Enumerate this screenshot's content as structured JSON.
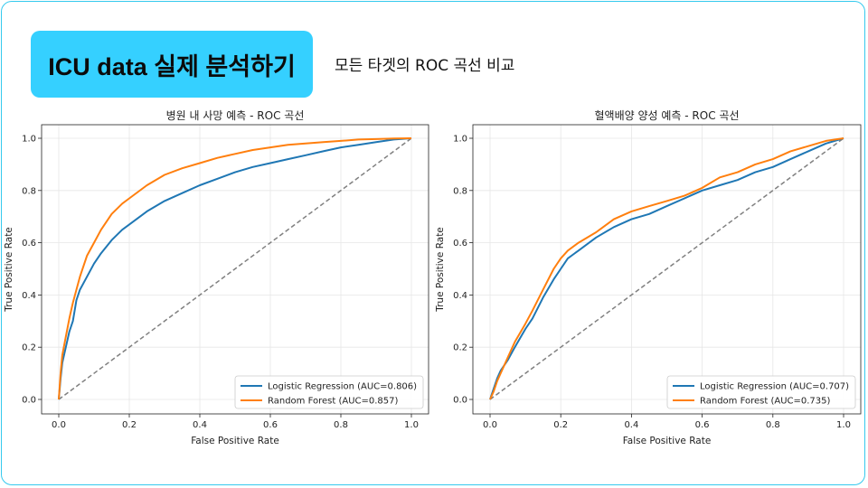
{
  "header": {
    "title": "ICU data 실제 분석하기",
    "subtitle": "모든 타겟의 ROC 곡선 비교"
  },
  "colors": {
    "accent": "#35d0ff",
    "logistic": "#1f77b4",
    "random_forest": "#ff7f0e",
    "diagonal": "#808080"
  },
  "chart_data": [
    {
      "type": "line",
      "title": "병원 내 사망 예측 - ROC 곡선",
      "xlabel": "False Positive Rate",
      "ylabel": "True Positive Rate",
      "xlim": [
        0,
        1
      ],
      "ylim": [
        0,
        1
      ],
      "xticks": [
        "0.0",
        "0.2",
        "0.4",
        "0.6",
        "0.8",
        "1.0"
      ],
      "yticks": [
        "0.0",
        "0.2",
        "0.4",
        "0.6",
        "0.8",
        "1.0"
      ],
      "grid": true,
      "legend_position": "lower right",
      "series": [
        {
          "name": "Logistic Regression (AUC=0.806)",
          "x": [
            0,
            0.005,
            0.01,
            0.02,
            0.03,
            0.04,
            0.05,
            0.06,
            0.08,
            0.1,
            0.12,
            0.15,
            0.18,
            0.2,
            0.25,
            0.3,
            0.35,
            0.4,
            0.45,
            0.5,
            0.55,
            0.6,
            0.65,
            0.7,
            0.75,
            0.8,
            0.85,
            0.9,
            0.95,
            1.0
          ],
          "y": [
            0,
            0.08,
            0.14,
            0.2,
            0.26,
            0.3,
            0.38,
            0.42,
            0.47,
            0.52,
            0.56,
            0.61,
            0.65,
            0.67,
            0.72,
            0.76,
            0.79,
            0.82,
            0.845,
            0.87,
            0.89,
            0.905,
            0.92,
            0.935,
            0.95,
            0.965,
            0.975,
            0.985,
            0.995,
            1.0
          ]
        },
        {
          "name": "Random Forest (AUC=0.857)",
          "x": [
            0,
            0.005,
            0.01,
            0.02,
            0.03,
            0.04,
            0.05,
            0.06,
            0.08,
            0.1,
            0.12,
            0.15,
            0.18,
            0.2,
            0.25,
            0.3,
            0.35,
            0.4,
            0.45,
            0.5,
            0.55,
            0.6,
            0.65,
            0.7,
            0.75,
            0.8,
            0.85,
            0.9,
            0.95,
            1.0
          ],
          "y": [
            0,
            0.1,
            0.17,
            0.24,
            0.31,
            0.37,
            0.42,
            0.47,
            0.55,
            0.6,
            0.65,
            0.71,
            0.75,
            0.77,
            0.82,
            0.86,
            0.885,
            0.905,
            0.925,
            0.94,
            0.955,
            0.965,
            0.975,
            0.98,
            0.985,
            0.99,
            0.995,
            0.997,
            0.999,
            1.0
          ]
        }
      ]
    },
    {
      "type": "line",
      "title": "혈액배양 양성 예측 - ROC 곡선",
      "xlabel": "False Positive Rate",
      "ylabel": "True Positive Rate",
      "xlim": [
        0,
        1
      ],
      "ylim": [
        0,
        1
      ],
      "xticks": [
        "0.0",
        "0.2",
        "0.4",
        "0.6",
        "0.8",
        "1.0"
      ],
      "yticks": [
        "0.0",
        "0.2",
        "0.4",
        "0.6",
        "0.8",
        "1.0"
      ],
      "grid": true,
      "legend_position": "lower right",
      "series": [
        {
          "name": "Logistic Regression (AUC=0.707)",
          "x": [
            0,
            0.01,
            0.02,
            0.03,
            0.05,
            0.07,
            0.1,
            0.12,
            0.15,
            0.18,
            0.2,
            0.22,
            0.25,
            0.3,
            0.35,
            0.4,
            0.45,
            0.5,
            0.55,
            0.6,
            0.65,
            0.7,
            0.75,
            0.8,
            0.85,
            0.9,
            0.95,
            1.0
          ],
          "y": [
            0,
            0.04,
            0.08,
            0.11,
            0.15,
            0.2,
            0.27,
            0.31,
            0.39,
            0.46,
            0.5,
            0.54,
            0.57,
            0.62,
            0.66,
            0.69,
            0.71,
            0.74,
            0.77,
            0.8,
            0.82,
            0.84,
            0.87,
            0.89,
            0.92,
            0.95,
            0.98,
            1.0
          ]
        },
        {
          "name": "Random Forest (AUC=0.735)",
          "x": [
            0,
            0.01,
            0.02,
            0.03,
            0.05,
            0.07,
            0.1,
            0.12,
            0.15,
            0.18,
            0.2,
            0.22,
            0.25,
            0.3,
            0.35,
            0.4,
            0.45,
            0.5,
            0.55,
            0.6,
            0.65,
            0.7,
            0.75,
            0.8,
            0.85,
            0.9,
            0.95,
            1.0
          ],
          "y": [
            0,
            0.03,
            0.07,
            0.1,
            0.16,
            0.22,
            0.29,
            0.34,
            0.42,
            0.5,
            0.54,
            0.57,
            0.6,
            0.64,
            0.69,
            0.72,
            0.74,
            0.76,
            0.78,
            0.81,
            0.85,
            0.87,
            0.9,
            0.92,
            0.95,
            0.97,
            0.99,
            1.0
          ]
        }
      ]
    }
  ]
}
